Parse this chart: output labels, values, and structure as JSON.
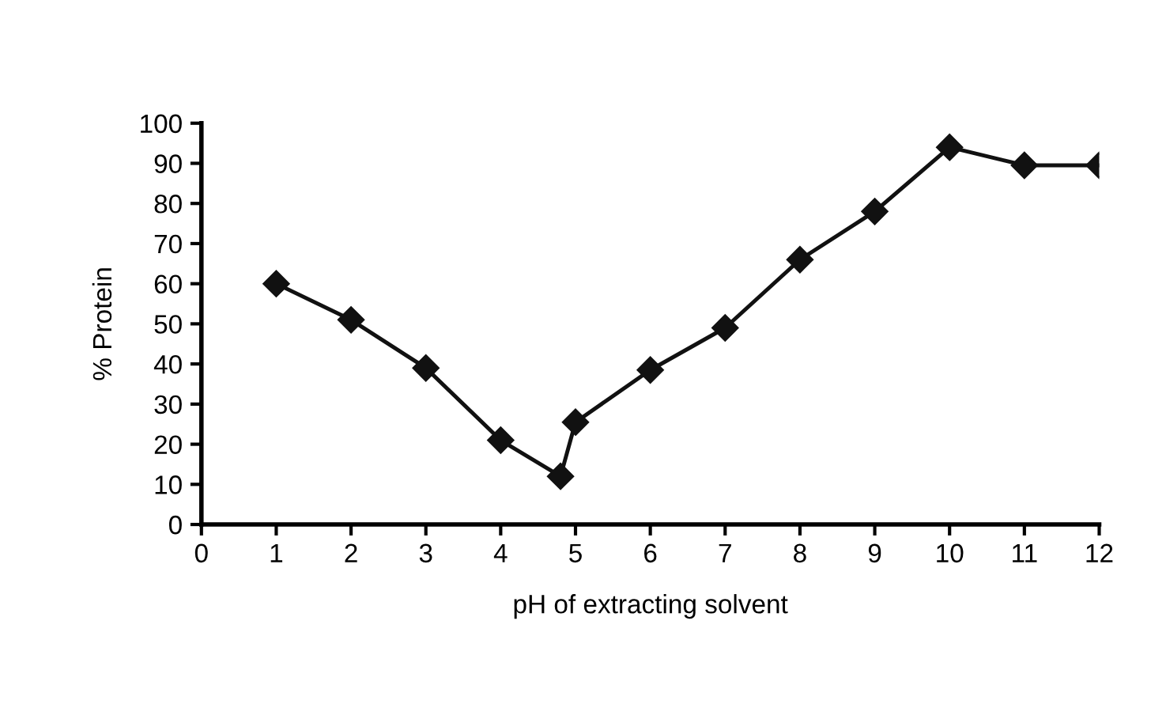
{
  "chart_data": {
    "type": "line",
    "xlabel": "pH of extracting solvent",
    "ylabel": "% Protein",
    "x": [
      1,
      2,
      3,
      4,
      4.8,
      5,
      6,
      7,
      8,
      9,
      10,
      11,
      12
    ],
    "series": [
      {
        "color": "#111111",
        "values": [
          60,
          51,
          39,
          21,
          12,
          25.5,
          38.5,
          49,
          66,
          78,
          94,
          89.5,
          89.5
        ]
      }
    ],
    "xlim": [
      0,
      12
    ],
    "xticks": [
      0,
      1,
      2,
      3,
      4,
      5,
      6,
      7,
      8,
      9,
      10,
      11,
      12
    ],
    "ylim": [
      0,
      100
    ],
    "yticks": [
      0,
      10,
      20,
      30,
      40,
      50,
      60,
      70,
      80,
      90,
      100
    ],
    "grid": false,
    "legend": false,
    "marker": "diamond",
    "line_style": "solid"
  }
}
